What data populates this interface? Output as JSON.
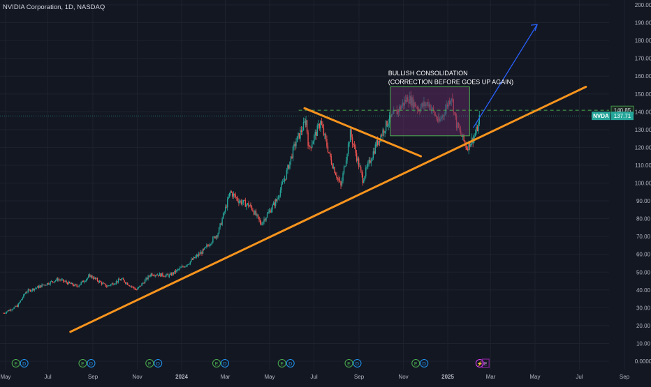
{
  "header": {
    "title": "NVIDIA Corporation, 1D, NASDAQ"
  },
  "colors": {
    "background": "#131722",
    "grid": "#1e222d",
    "up": "#26a69a",
    "down": "#ef5350",
    "trendline": "#f7941d",
    "arrow": "#2962ff",
    "box_border": "#4caf50",
    "box_fill": "#5b2a5e",
    "dashed_line": "#4caf50",
    "axis_text": "#b2b5be"
  },
  "chart_data": {
    "type": "candlestick",
    "title": "NVIDIA Corporation, 1D, NASDAQ",
    "y_unit": "USD",
    "ylim": [
      0,
      200
    ],
    "y_ticks": [
      "200.00",
      "190.00",
      "180.00",
      "170.00",
      "160.00",
      "150.00",
      "140.00",
      "130.00",
      "120.00",
      "110.00",
      "100.00",
      "90.00",
      "80.00",
      "70.00",
      "60.00",
      "50.00",
      "40.00",
      "30.00",
      "20.00",
      "10.00",
      "0.0000"
    ],
    "x_ticks": [
      "May",
      "Jul",
      "Sep",
      "Nov",
      "2024",
      "Mar",
      "May",
      "Jul",
      "Sep",
      "Nov",
      "2025",
      "Mar",
      "May",
      "Jul",
      "Sep"
    ],
    "grid": true,
    "price_path": [
      [
        "2023-05-01",
        27
      ],
      [
        "2023-05-20",
        31
      ],
      [
        "2023-06-01",
        39
      ],
      [
        "2023-06-20",
        42
      ],
      [
        "2023-07-15",
        46
      ],
      [
        "2023-08-10",
        42
      ],
      [
        "2023-08-28",
        48
      ],
      [
        "2023-09-20",
        42
      ],
      [
        "2023-10-10",
        46
      ],
      [
        "2023-10-31",
        40
      ],
      [
        "2023-11-20",
        49
      ],
      [
        "2023-12-15",
        48
      ],
      [
        "2024-01-10",
        55
      ],
      [
        "2024-01-31",
        62
      ],
      [
        "2024-02-20",
        72
      ],
      [
        "2024-03-08",
        95
      ],
      [
        "2024-03-20",
        90
      ],
      [
        "2024-04-05",
        87
      ],
      [
        "2024-04-19",
        77
      ],
      [
        "2024-05-10",
        90
      ],
      [
        "2024-05-23",
        104
      ],
      [
        "2024-06-05",
        122
      ],
      [
        "2024-06-20",
        135
      ],
      [
        "2024-06-24",
        119
      ],
      [
        "2024-07-10",
        134
      ],
      [
        "2024-07-25",
        112
      ],
      [
        "2024-08-07",
        98
      ],
      [
        "2024-08-20",
        128
      ],
      [
        "2024-09-06",
        102
      ],
      [
        "2024-09-25",
        122
      ],
      [
        "2024-10-10",
        134
      ],
      [
        "2024-10-25",
        141
      ],
      [
        "2024-11-07",
        148
      ],
      [
        "2024-11-22",
        142
      ],
      [
        "2024-12-05",
        145
      ],
      [
        "2024-12-20",
        134
      ],
      [
        "2025-01-06",
        149
      ],
      [
        "2025-01-13",
        133
      ],
      [
        "2025-01-27",
        120
      ],
      [
        "2025-02-05",
        125
      ],
      [
        "2025-02-12",
        132
      ],
      [
        "2025-02-14",
        137.71
      ]
    ],
    "current_price": {
      "symbol": "NVDA",
      "value": "137.71"
    },
    "resistance_level": {
      "value": "140.85"
    },
    "annotations": {
      "box_label_line1": "BULLISH CONSOLIDATION",
      "box_label_line2": "(CORRECTION BEFORE GOES UP AGAIN)"
    },
    "event_markers": [
      {
        "date": "2023-05-18",
        "labels": [
          "E",
          "D"
        ]
      },
      {
        "date": "2023-08-18",
        "labels": [
          "E",
          "D"
        ]
      },
      {
        "date": "2023-11-18",
        "labels": [
          "E",
          "D"
        ]
      },
      {
        "date": "2024-02-18",
        "labels": [
          "E",
          "D"
        ]
      },
      {
        "date": "2024-05-18",
        "labels": [
          "E",
          "D"
        ]
      },
      {
        "date": "2024-08-18",
        "labels": [
          "E",
          "D"
        ]
      },
      {
        "date": "2024-11-18",
        "labels": [
          "E",
          "D"
        ]
      },
      {
        "date": "2025-02-14",
        "labels": [
          "⚡",
          "E"
        ]
      }
    ]
  }
}
